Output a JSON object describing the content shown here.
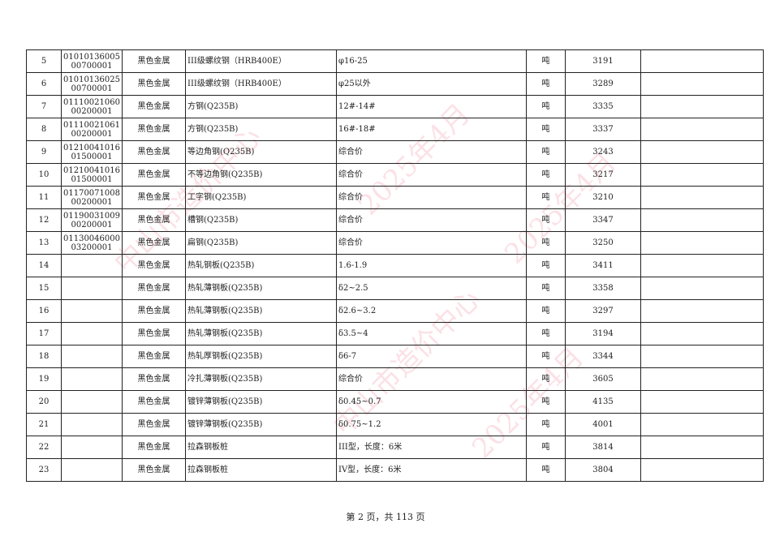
{
  "watermark": {
    "org": "中山市造价中心",
    "date": "2025年4月",
    "color": "#eb788c"
  },
  "rows": [
    {
      "no": "5",
      "code1": "01010136005",
      "code2": "00700001",
      "cat": "黑色金属",
      "name": "III级螺纹钢（HRB400E）",
      "spec": "φ16-25",
      "unit": "吨",
      "price": "3191",
      "note": ""
    },
    {
      "no": "6",
      "code1": "01010136025",
      "code2": "00700001",
      "cat": "黑色金属",
      "name": "III级螺纹钢（HRB400E）",
      "spec": "φ25以外",
      "unit": "吨",
      "price": "3289",
      "note": ""
    },
    {
      "no": "7",
      "code1": "01110021060",
      "code2": "00200001",
      "cat": "黑色金属",
      "name": "方钢(Q235B)",
      "spec": "12#-14#",
      "unit": "吨",
      "price": "3335",
      "note": ""
    },
    {
      "no": "8",
      "code1": "01110021061",
      "code2": "00200001",
      "cat": "黑色金属",
      "name": "方钢(Q235B)",
      "spec": "16#-18#",
      "unit": "吨",
      "price": "3337",
      "note": ""
    },
    {
      "no": "9",
      "code1": "01210041016",
      "code2": "01500001",
      "cat": "黑色金属",
      "name": "等边角钢(Q235B)",
      "spec": "综合价",
      "unit": "吨",
      "price": "3243",
      "note": ""
    },
    {
      "no": "10",
      "code1": "01210041016",
      "code2": "01500001",
      "cat": "黑色金属",
      "name": "不等边角钢(Q235B)",
      "spec": "综合价",
      "unit": "吨",
      "price": "3217",
      "note": ""
    },
    {
      "no": "11",
      "code1": "01170071008",
      "code2": "00200001",
      "cat": "黑色金属",
      "name": "工字钢(Q235B)",
      "spec": "综合价",
      "unit": "吨",
      "price": "3210",
      "note": ""
    },
    {
      "no": "12",
      "code1": "01190031009",
      "code2": "00200001",
      "cat": "黑色金属",
      "name": "槽钢(Q235B)",
      "spec": "综合价",
      "unit": "吨",
      "price": "3347",
      "note": ""
    },
    {
      "no": "13",
      "code1": "01130046000",
      "code2": "03200001",
      "cat": "黑色金属",
      "name": "扁钢(Q235B)",
      "spec": "综合价",
      "unit": "吨",
      "price": "3250",
      "note": ""
    },
    {
      "no": "14",
      "code1": "",
      "code2": "",
      "cat": "黑色金属",
      "name": "热轧钢板(Q235B)",
      "spec": "1.6-1.9",
      "unit": "吨",
      "price": "3411",
      "note": ""
    },
    {
      "no": "15",
      "code1": "",
      "code2": "",
      "cat": "黑色金属",
      "name": "热轧薄钢板(Q235B)",
      "spec": "δ2~2.5",
      "unit": "吨",
      "price": "3358",
      "note": ""
    },
    {
      "no": "16",
      "code1": "",
      "code2": "",
      "cat": "黑色金属",
      "name": "热轧薄钢板(Q235B)",
      "spec": "δ2.6~3.2",
      "unit": "吨",
      "price": "3297",
      "note": ""
    },
    {
      "no": "17",
      "code1": "",
      "code2": "",
      "cat": "黑色金属",
      "name": "热轧薄钢板(Q235B)",
      "spec": "δ3.5~4",
      "unit": "吨",
      "price": "3194",
      "note": ""
    },
    {
      "no": "18",
      "code1": "",
      "code2": "",
      "cat": "黑色金属",
      "name": "热轧厚钢板(Q235B)",
      "spec": "δ6-7",
      "unit": "吨",
      "price": "3344",
      "note": ""
    },
    {
      "no": "19",
      "code1": "",
      "code2": "",
      "cat": "黑色金属",
      "name": "冷扎薄钢板(Q235B)",
      "spec": "综合价",
      "unit": "吨",
      "price": "3605",
      "note": ""
    },
    {
      "no": "20",
      "code1": "",
      "code2": "",
      "cat": "黑色金属",
      "name": "镀锌薄钢板(Q235B)",
      "spec": "δ0.45~0.7",
      "unit": "吨",
      "price": "4135",
      "note": ""
    },
    {
      "no": "21",
      "code1": "",
      "code2": "",
      "cat": "黑色金属",
      "name": "镀锌薄钢板(Q235B)",
      "spec": "δ0.75~1.2",
      "unit": "吨",
      "price": "4001",
      "note": ""
    },
    {
      "no": "22",
      "code1": "",
      "code2": "",
      "cat": "黑色金属",
      "name": "拉森钢板桩",
      "spec": "III型，长度：6米",
      "unit": "吨",
      "price": "3814",
      "note": ""
    },
    {
      "no": "23",
      "code1": "",
      "code2": "",
      "cat": "黑色金属",
      "name": "拉森钢板桩",
      "spec": "IV型，长度：6米",
      "unit": "吨",
      "price": "3804",
      "note": ""
    }
  ],
  "footer": {
    "page_text": "第 2 页，共 113 页"
  }
}
